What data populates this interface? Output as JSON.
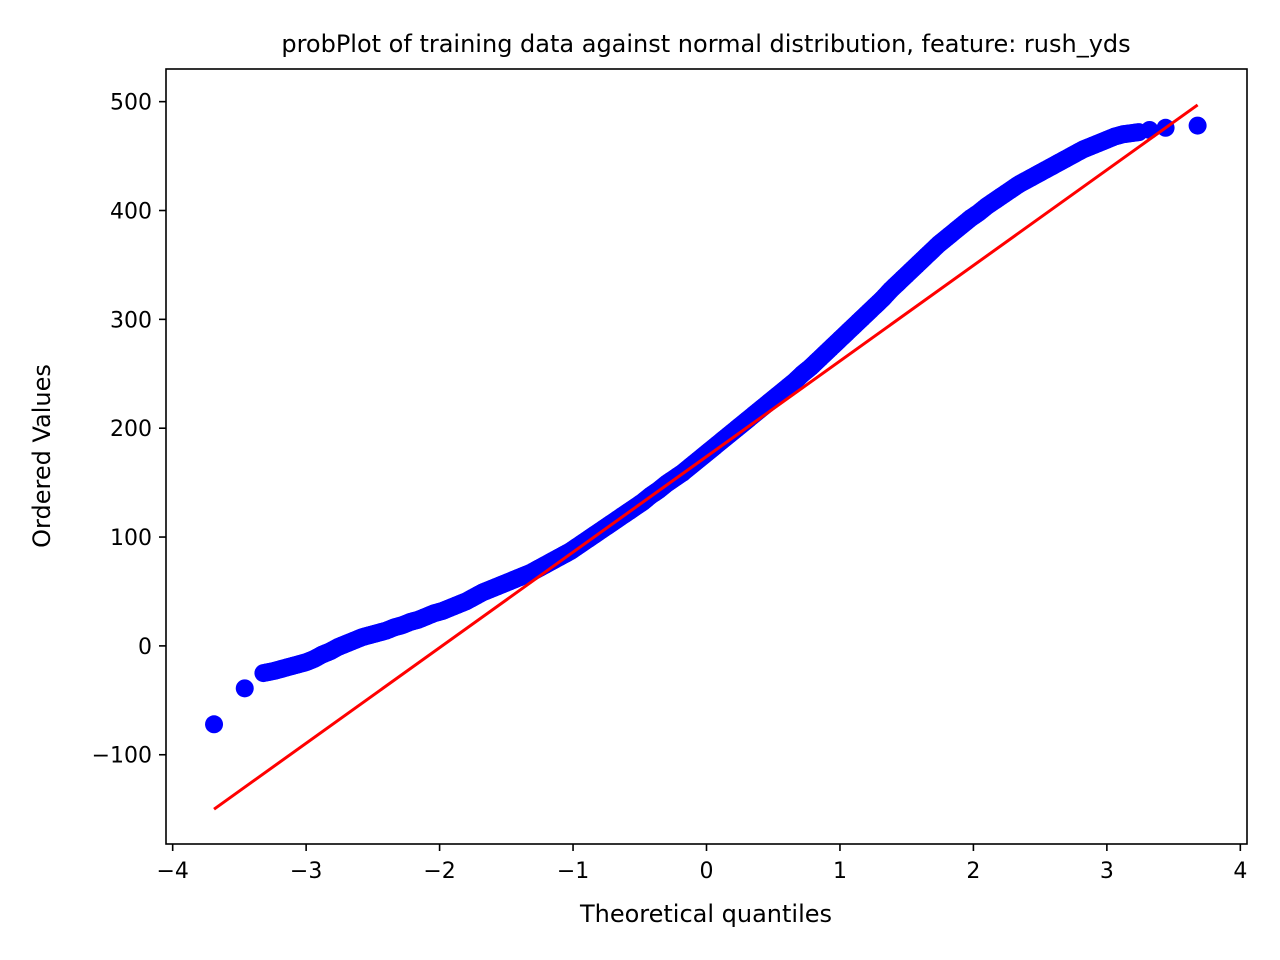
{
  "chart_data": {
    "type": "scatter",
    "title": "probPlot of training data against normal distribution, feature: rush_yds",
    "xlabel": "Theoretical quantiles",
    "ylabel": "Ordered Values",
    "xlim": [
      -4.05,
      4.05
    ],
    "ylim": [
      -182,
      530
    ],
    "xticks": [
      -4,
      -3,
      -2,
      -1,
      0,
      1,
      2,
      3,
      4
    ],
    "xtick_labels": [
      "−4",
      "−3",
      "−2",
      "−1",
      "0",
      "1",
      "2",
      "3",
      "4"
    ],
    "yticks": [
      -100,
      0,
      100,
      200,
      300,
      400,
      500
    ],
    "ytick_labels": [
      "−100",
      "0",
      "100",
      "200",
      "300",
      "400",
      "500"
    ],
    "grid": false,
    "series": [
      {
        "kind": "points",
        "color": "#0000ff",
        "x": [
          -3.69,
          -3.46,
          -3.32,
          -3.24,
          -3.18,
          -3.12,
          -3.06,
          -3.0,
          -2.94,
          -2.88,
          -2.82,
          -2.76,
          -2.7,
          -2.64,
          -2.58,
          -2.52,
          -2.46,
          -2.4,
          -2.34,
          -2.28,
          -2.22,
          -2.16,
          -2.1,
          -2.04,
          -1.98,
          -1.92,
          -1.86,
          -1.8,
          -1.74,
          -1.68,
          -1.62,
          -1.56,
          -1.5,
          -1.44,
          -1.38,
          -1.32,
          -1.26,
          -1.2,
          -1.14,
          -1.08,
          -1.02,
          -0.96,
          -0.9,
          -0.84,
          -0.78,
          -0.72,
          -0.66,
          -0.6,
          -0.54,
          -0.48,
          -0.42,
          -0.36,
          -0.3,
          -0.24,
          -0.18,
          -0.12,
          -0.06,
          0.0,
          0.06,
          0.12,
          0.18,
          0.24,
          0.3,
          0.36,
          0.42,
          0.48,
          0.54,
          0.6,
          0.66,
          0.72,
          0.78,
          0.84,
          0.9,
          0.96,
          1.02,
          1.08,
          1.14,
          1.2,
          1.26,
          1.32,
          1.38,
          1.44,
          1.5,
          1.56,
          1.62,
          1.68,
          1.74,
          1.8,
          1.86,
          1.92,
          1.98,
          2.04,
          2.1,
          2.16,
          2.22,
          2.28,
          2.34,
          2.4,
          2.46,
          2.52,
          2.58,
          2.64,
          2.7,
          2.76,
          2.82,
          2.88,
          2.94,
          3.0,
          3.06,
          3.12,
          3.18,
          3.24,
          3.32,
          3.44,
          3.68
        ],
        "y": [
          -72,
          -39,
          -25,
          -23,
          -21,
          -19,
          -17,
          -15,
          -12,
          -8,
          -5,
          -1,
          2,
          5,
          8,
          10,
          12,
          14,
          17,
          19,
          22,
          24,
          27,
          30,
          32,
          35,
          38,
          41,
          45,
          49,
          52,
          55,
          58,
          61,
          64,
          67,
          71,
          75,
          79,
          83,
          87,
          92,
          97,
          102,
          107,
          112,
          117,
          122,
          127,
          132,
          138,
          143,
          149,
          154,
          159,
          165,
          171,
          177,
          183,
          189,
          195,
          201,
          207,
          213,
          219,
          225,
          231,
          237,
          243,
          250,
          256,
          263,
          270,
          277,
          284,
          291,
          298,
          305,
          312,
          319,
          327,
          334,
          341,
          348,
          355,
          362,
          369,
          375,
          381,
          387,
          393,
          398,
          404,
          409,
          414,
          419,
          424,
          428,
          432,
          436,
          440,
          444,
          448,
          452,
          456,
          459,
          462,
          465,
          468,
          470,
          471,
          472,
          474,
          476,
          478
        ]
      },
      {
        "kind": "fit-line",
        "color": "#ff0000",
        "x": [
          -3.69,
          3.68
        ],
        "y": [
          -150,
          497
        ]
      }
    ]
  }
}
